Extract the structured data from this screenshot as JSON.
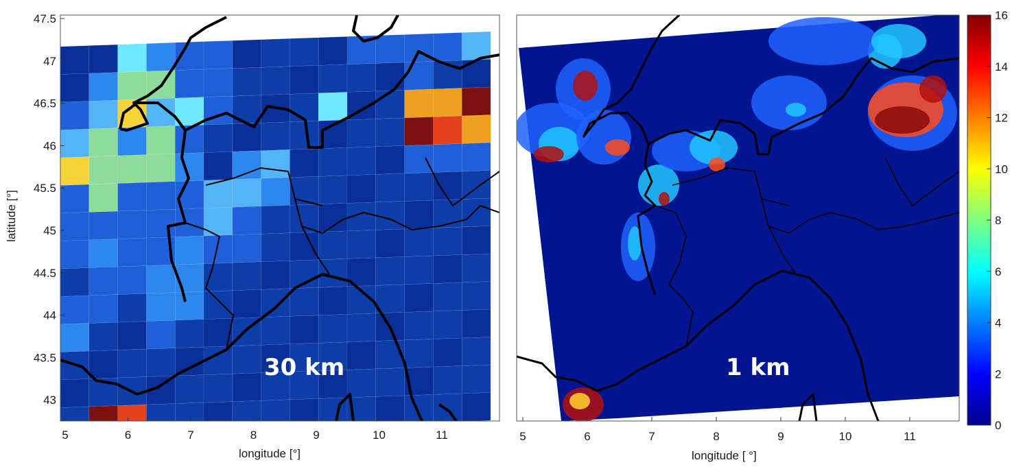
{
  "panels": [
    {
      "id": "left",
      "resolution_label": "30 km",
      "xlabel": "longitude [°]",
      "ylabel": "latitude [°]",
      "x_ticks": [
        "5",
        "6",
        "7",
        "8",
        "9",
        "10",
        "11"
      ],
      "y_ticks": [
        "47.5",
        "47",
        "46.5",
        "46",
        "45.5",
        "45",
        "44.5",
        "44",
        "43.5",
        "43"
      ]
    },
    {
      "id": "right",
      "resolution_label": "1 km",
      "xlabel": "longitude [ °]",
      "ylabel": "",
      "x_ticks": [
        "5",
        "6",
        "7",
        "8",
        "9",
        "10",
        "11"
      ],
      "y_ticks": []
    }
  ],
  "colorbar": {
    "colormap": "jet",
    "ticks": [
      "0",
      "2",
      "4",
      "6",
      "8",
      "10",
      "12",
      "14",
      "16"
    ],
    "range": [
      0,
      16
    ]
  },
  "colors": {
    "low": "#00008f",
    "background_field": "#0a2a9a",
    "high": "#800000",
    "border_lines": "#000000"
  }
}
